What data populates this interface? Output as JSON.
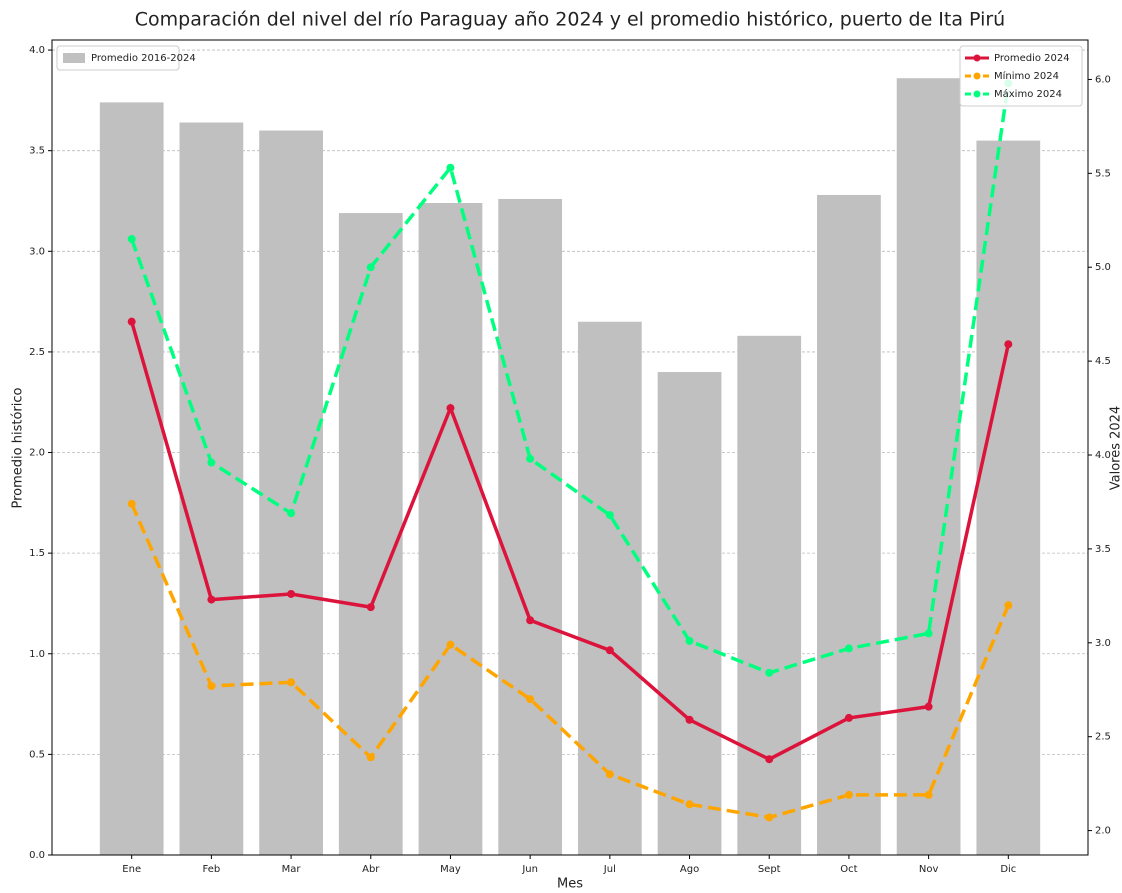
{
  "chart_data": {
    "type": "bar_line",
    "title": "Comparación del nivel del río Paraguay año 2024 y el promedio histórico, puerto de Ita Pirú",
    "xlabel": "Mes",
    "ylabel": "Promedio histórico",
    "y2label": "Valores 2024",
    "categories": [
      "Ene",
      "Feb",
      "Mar",
      "Abr",
      "May",
      "Jun",
      "Jul",
      "Ago",
      "Sept",
      "Oct",
      "Nov",
      "Dic"
    ],
    "series": [
      {
        "name": "Promedio 2016-2024",
        "type": "bar",
        "axis": "y",
        "color": "#c0c0c0",
        "values": [
          3.74,
          3.64,
          3.6,
          3.19,
          3.24,
          3.26,
          2.65,
          2.4,
          2.58,
          3.28,
          3.86,
          3.55
        ]
      },
      {
        "name": "Promedio 2024",
        "type": "line",
        "axis": "y2",
        "color": "#dc143c",
        "linestyle": "solid",
        "values": [
          4.71,
          3.23,
          3.26,
          3.19,
          4.25,
          3.12,
          2.96,
          2.59,
          2.38,
          2.6,
          2.66,
          4.59
        ]
      },
      {
        "name": "Mínimo 2024",
        "type": "line",
        "axis": "y2",
        "color": "#ffa500",
        "linestyle": "dashed",
        "values": [
          3.74,
          2.77,
          2.79,
          2.39,
          2.99,
          2.7,
          2.3,
          2.14,
          2.07,
          2.19,
          2.19,
          3.2
        ]
      },
      {
        "name": "Máximo 2024",
        "type": "line",
        "axis": "y2",
        "color": "#00ff7f",
        "linestyle": "dashed",
        "values": [
          5.15,
          3.96,
          3.69,
          5.0,
          5.53,
          3.98,
          3.68,
          3.01,
          2.84,
          2.97,
          3.05,
          5.98
        ]
      }
    ],
    "ylim": [
      0,
      4.05
    ],
    "yticks": [
      {
        "value": 0,
        "label": "0.0"
      },
      {
        "value": 0.5,
        "label": "0.5"
      },
      {
        "value": 1,
        "label": "1.0"
      },
      {
        "value": 1.5,
        "label": "1.5"
      },
      {
        "value": 2,
        "label": "2.0"
      },
      {
        "value": 2.5,
        "label": "2.5"
      },
      {
        "value": 3,
        "label": "3.0"
      },
      {
        "value": 3.5,
        "label": "3.5"
      },
      {
        "value": 4,
        "label": "4.0"
      }
    ],
    "y2lim": [
      1.87,
      6.21
    ],
    "y2ticks": [
      {
        "value": 2,
        "label": "2.0"
      },
      {
        "value": 2.5,
        "label": "2.5"
      },
      {
        "value": 3,
        "label": "3.0"
      },
      {
        "value": 3.5,
        "label": "3.5"
      },
      {
        "value": 4,
        "label": "4.0"
      },
      {
        "value": 4.5,
        "label": "4.5"
      },
      {
        "value": 5,
        "label": "5.0"
      },
      {
        "value": 5.5,
        "label": "5.5"
      },
      {
        "value": 6,
        "label": "6.0"
      }
    ],
    "grid": true,
    "legend_y": "upper left",
    "legend_y2": "upper right"
  }
}
